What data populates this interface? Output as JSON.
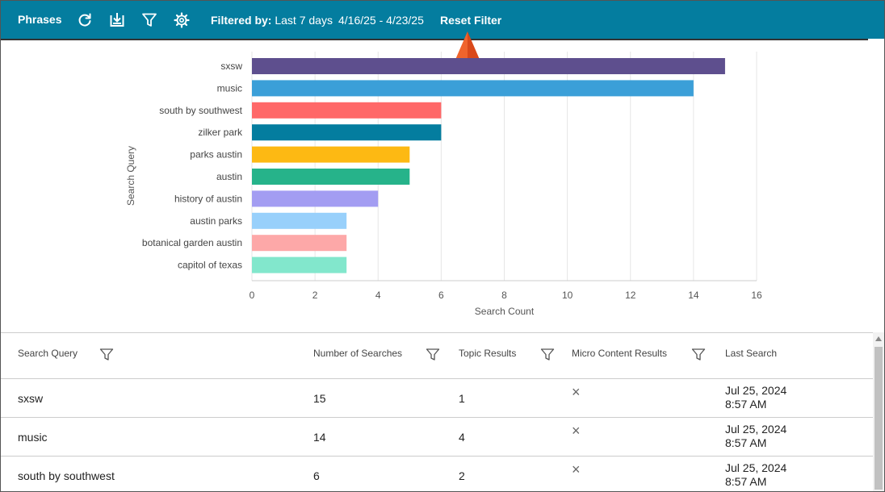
{
  "toolbar": {
    "title": "Phrases",
    "filtered_label": "Filtered by:",
    "filtered_value": "Last 7 days",
    "date_range": "4/16/25 - 4/23/25",
    "reset_label": "Reset Filter",
    "background": "#047d9f"
  },
  "chart_data": {
    "type": "bar",
    "orientation": "horizontal",
    "categories": [
      "sxsw",
      "music",
      "south by southwest",
      "zilker park",
      "parks austin",
      "austin",
      "history of austin",
      "austin parks",
      "botanical garden austin",
      "capitol of texas"
    ],
    "values": [
      15,
      14,
      6,
      6,
      5,
      5,
      4,
      3,
      3,
      3
    ],
    "colors": [
      "#5e4f8e",
      "#3b9fd8",
      "#ff6868",
      "#047d9f",
      "#fdb913",
      "#26b38a",
      "#a39df2",
      "#98d0fb",
      "#fda8a8",
      "#82e7cc"
    ],
    "xlabel": "Search Count",
    "ylabel": "Search Query",
    "xlim": [
      0,
      16
    ],
    "xticks": [
      0,
      2,
      4,
      6,
      8,
      10,
      12,
      14,
      16
    ],
    "grid": true
  },
  "table": {
    "columns": [
      "Search Query",
      "Number of Searches",
      "Topic Results",
      "Micro Content Results",
      "Last Search"
    ],
    "rows": [
      {
        "query": "sxsw",
        "count": "15",
        "topic": "1",
        "micro": "×",
        "date": "Jul 25, 2024",
        "time": "8:57 AM"
      },
      {
        "query": "music",
        "count": "14",
        "topic": "4",
        "micro": "×",
        "date": "Jul 25, 2024",
        "time": "8:57 AM"
      },
      {
        "query": "south by southwest",
        "count": "6",
        "topic": "2",
        "micro": "×",
        "date": "Jul 25, 2024",
        "time": "8:57 AM"
      }
    ]
  }
}
